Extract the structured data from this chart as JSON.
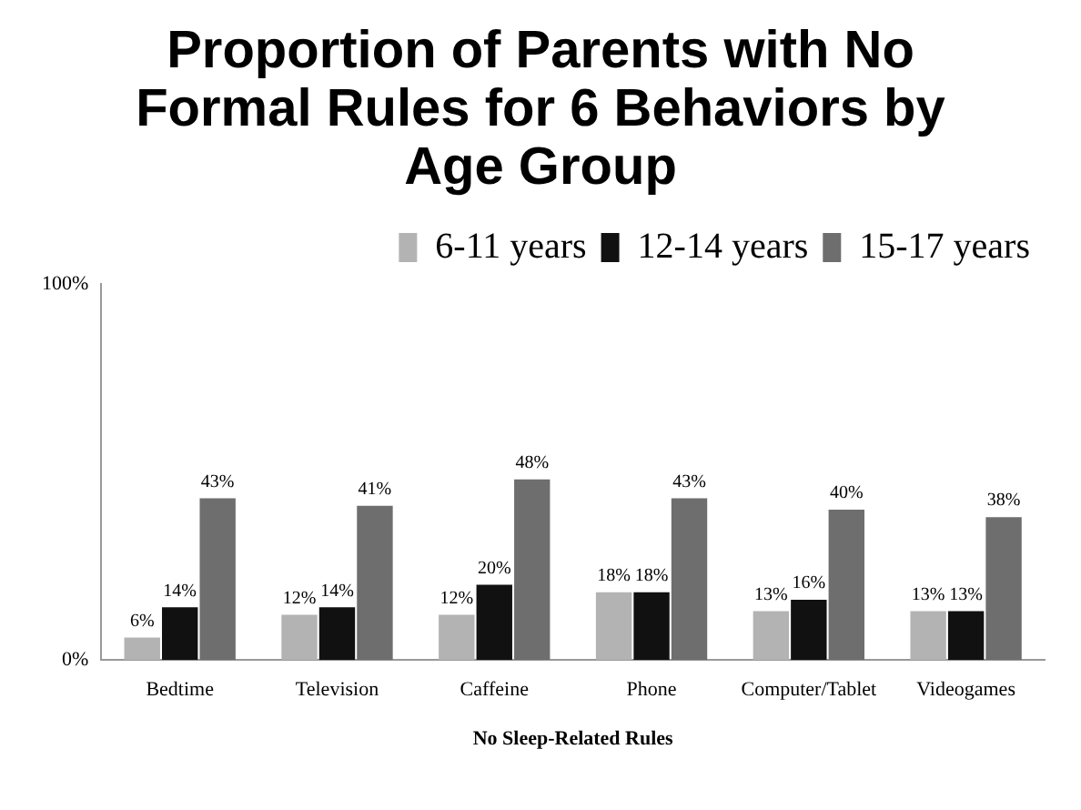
{
  "chart_data": {
    "type": "bar",
    "title": "Proportion of Parents with No Formal Rules for 6 Behaviors by Age Group",
    "xlabel": "No Sleep-Related Rules",
    "categories": [
      "Bedtime",
      "Television",
      "Caffeine",
      "Phone",
      "Computer/Tablet",
      "Videogames"
    ],
    "series": [
      {
        "name": "6-11 years",
        "color": "#b3b3b3",
        "values": [
          6,
          12,
          12,
          18,
          13,
          13
        ],
        "value_labels": [
          "6%",
          "12%",
          "12%",
          "18%",
          "13%",
          "13%"
        ]
      },
      {
        "name": "12-14 years",
        "color": "#111111",
        "values": [
          14,
          14,
          20,
          18,
          16,
          13
        ],
        "value_labels": [
          "14%",
          "14%",
          "20%",
          "18%",
          "16%",
          "13%"
        ]
      },
      {
        "name": "15-17 years",
        "color": "#6e6e6e",
        "values": [
          43,
          41,
          48,
          43,
          40,
          38
        ],
        "value_labels": [
          "43%",
          "41%",
          "48%",
          "43%",
          "40%",
          "38%"
        ]
      }
    ],
    "ylim": [
      0,
      100
    ],
    "yticks": [
      {
        "value": 0,
        "label": "0%"
      },
      {
        "value": 100,
        "label": "100%"
      }
    ],
    "grid": false,
    "legend": "top right"
  }
}
